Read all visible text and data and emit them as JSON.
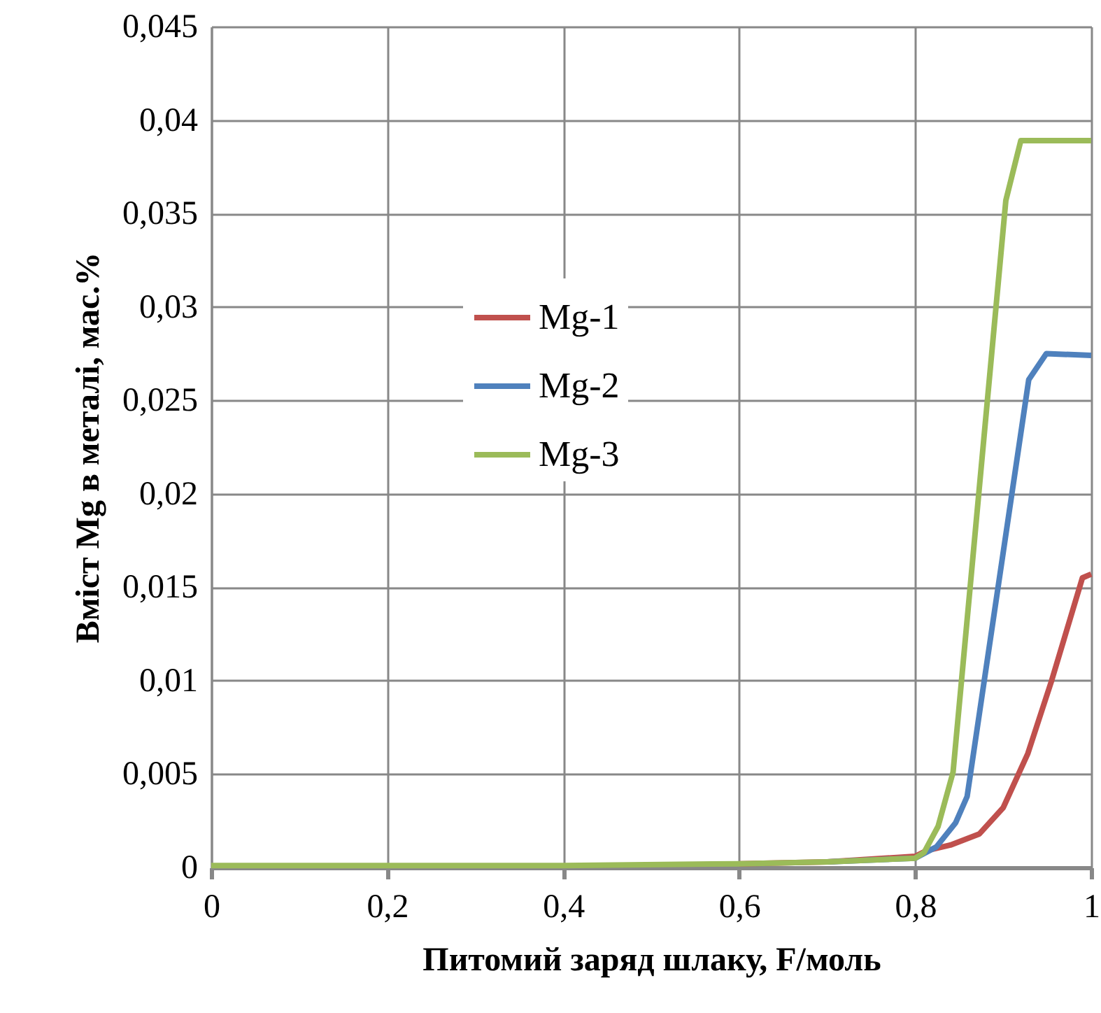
{
  "chart_data": {
    "type": "line",
    "xlabel": "Питомий заряд шлаку, F/моль",
    "ylabel": "Вміст Mg в металі, мас.%",
    "xlim": [
      0,
      1
    ],
    "xticks": [
      0,
      {
        "value": 0.2,
        "label": "0,2"
      },
      {
        "value": 0.4,
        "label": "0,4"
      },
      {
        "value": 0.6,
        "label": "0,6"
      },
      {
        "value": 0.8,
        "label": "0,8"
      },
      1
    ],
    "ylim": [
      0,
      0.045
    ],
    "yticks": [
      0,
      {
        "value": 0.005,
        "label": "0,005"
      },
      {
        "value": 0.01,
        "label": "0,01"
      },
      {
        "value": 0.015,
        "label": "0,015"
      },
      {
        "value": 0.02,
        "label": "0,02"
      },
      {
        "value": 0.025,
        "label": "0,025"
      },
      {
        "value": 0.03,
        "label": "0,03"
      },
      {
        "value": 0.035,
        "label": "0,035"
      },
      {
        "value": 0.04,
        "label": "0,04"
      },
      {
        "value": 0.045,
        "label": "0,045"
      }
    ],
    "grid": true,
    "legend": "center",
    "marker": "none",
    "line_style": "solid",
    "series": [
      {
        "name": "Mg-1",
        "color": "#c0504d",
        "x": [
          0.6,
          0.7,
          0.8,
          0.813,
          0.84,
          0.873,
          0.9,
          0.928,
          0.955,
          0.99,
          1
        ],
        "values": [
          0.0002,
          0.0003,
          0.0006,
          0.0009,
          0.0012,
          0.0018,
          0.0032,
          0.0061,
          0.01,
          0.0155,
          0.0157
        ]
      },
      {
        "name": "Mg-2",
        "color": "#4f81bd",
        "x": [
          0.7,
          0.8,
          0.824,
          0.846,
          0.859,
          0.929,
          0.949,
          1
        ],
        "values": [
          0.0003,
          0.0005,
          0.0011,
          0.0024,
          0.0038,
          0.0261,
          0.0275,
          0.0274
        ]
      },
      {
        "name": "Mg-3",
        "color": "#9bbb59",
        "x": [
          0,
          0.2,
          0.4,
          0.6,
          0.7,
          0.8,
          0.81,
          0.826,
          0.843,
          0.903,
          0.92,
          1
        ],
        "values": [
          0.0001,
          0.0001,
          0.0001,
          0.0002,
          0.0003,
          0.0005,
          0.0008,
          0.0022,
          0.0051,
          0.0357,
          0.0389,
          0.0389
        ]
      }
    ]
  }
}
